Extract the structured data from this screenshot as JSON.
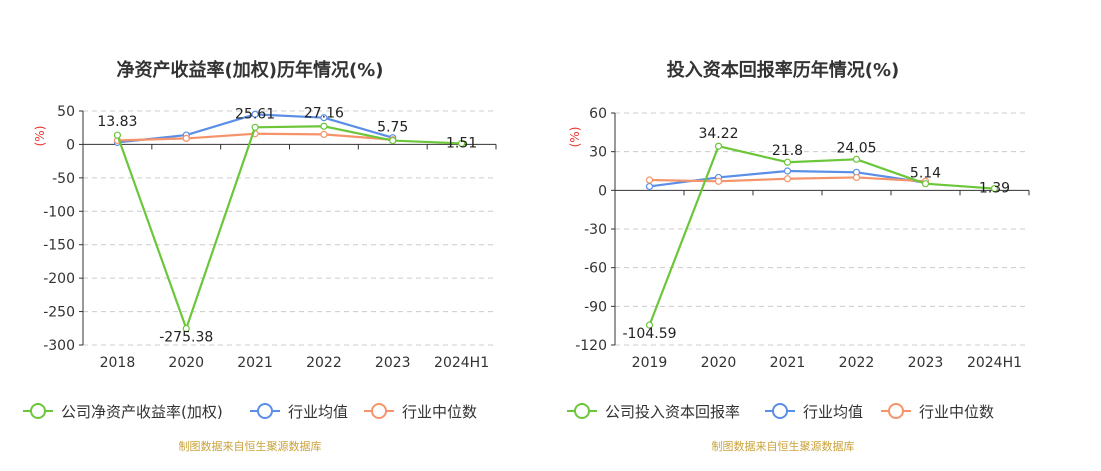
{
  "chart_data": [
    {
      "type": "line",
      "title": "净资产收益率(加权)历年情况(%)",
      "ylabel": "(%)",
      "categories": [
        "2018",
        "2020",
        "2021",
        "2022",
        "2023",
        "2024H1"
      ],
      "ylim": [
        -300,
        50
      ],
      "yticks": [
        50,
        0,
        -50,
        -100,
        -150,
        -200,
        -250,
        -300
      ],
      "grid": true,
      "legend_position": "bottom",
      "series": [
        {
          "name": "公司净资产收益率(加权)",
          "color": "#6cc63a",
          "values": [
            13.83,
            -275.38,
            25.61,
            27.16,
            5.75,
            1.51
          ],
          "labels": [
            "13.83",
            "-275.38",
            "25.61",
            "27.16",
            "5.75",
            "1.51"
          ]
        },
        {
          "name": "行业均值",
          "color": "#5b8ee6",
          "values": [
            3,
            14,
            45,
            40,
            10,
            null
          ]
        },
        {
          "name": "行业中位数",
          "color": "#f5946a",
          "values": [
            6,
            9,
            16,
            15,
            7,
            null
          ]
        }
      ],
      "source": "制图数据来自恒生聚源数据库"
    },
    {
      "type": "line",
      "title": "投入资本回报率历年情况(%)",
      "ylabel": "(%)",
      "categories": [
        "2019",
        "2020",
        "2021",
        "2022",
        "2023",
        "2024H1"
      ],
      "ylim": [
        -120,
        60
      ],
      "yticks": [
        60,
        30,
        0,
        -30,
        -60,
        -90,
        -120
      ],
      "grid": true,
      "legend_position": "bottom",
      "series": [
        {
          "name": "公司投入资本回报率",
          "color": "#6cc63a",
          "values": [
            -104.59,
            34.22,
            21.8,
            24.05,
            5.14,
            1.39
          ],
          "labels": [
            "-104.59",
            "34.22",
            "21.8",
            "24.05",
            "5.14",
            "1.39"
          ]
        },
        {
          "name": "行业均值",
          "color": "#5b8ee6",
          "values": [
            3,
            10,
            15,
            14,
            6,
            null
          ]
        },
        {
          "name": "行业中位数",
          "color": "#f5946a",
          "values": [
            8,
            7,
            9,
            10,
            7,
            null
          ]
        }
      ],
      "source": "制图数据来自恒生聚源数据库"
    }
  ]
}
